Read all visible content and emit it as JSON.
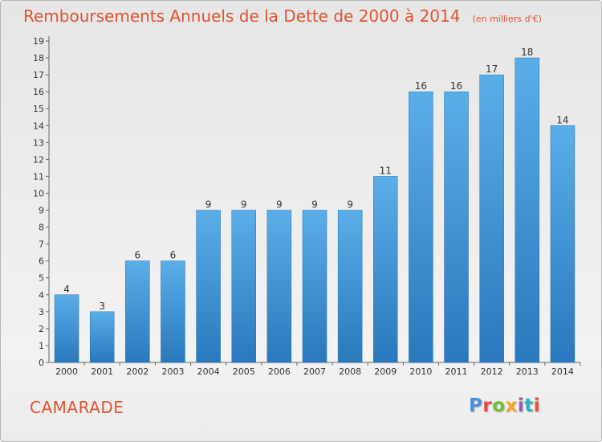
{
  "chart_data": {
    "type": "bar",
    "title": "Remboursements Annuels de la Dette de 2000 à 2014",
    "subtitle": "(en milliers d'€)",
    "categories": [
      "2000",
      "2001",
      "2002",
      "2003",
      "2004",
      "2005",
      "2006",
      "2007",
      "2008",
      "2009",
      "2010",
      "2011",
      "2012",
      "2013",
      "2014"
    ],
    "values": [
      4,
      3,
      6,
      6,
      9,
      9,
      9,
      9,
      9,
      11,
      16,
      16,
      17,
      18,
      14
    ],
    "ylim": [
      0,
      19
    ],
    "yticks": [
      0,
      1,
      2,
      3,
      4,
      5,
      6,
      7,
      8,
      9,
      10,
      11,
      12,
      13,
      14,
      15,
      16,
      17,
      18,
      19
    ],
    "grid": false,
    "data_labels": true,
    "bar_color": "#3a8fd8"
  },
  "footer": {
    "place": "CAMARADE",
    "brand": "Proxiti",
    "brand_colors": [
      "#4a90d9",
      "#e94b3c",
      "#6bbf3a",
      "#f5a623",
      "#9b59b6",
      "#2bb0c8",
      "#e94b3c"
    ]
  }
}
